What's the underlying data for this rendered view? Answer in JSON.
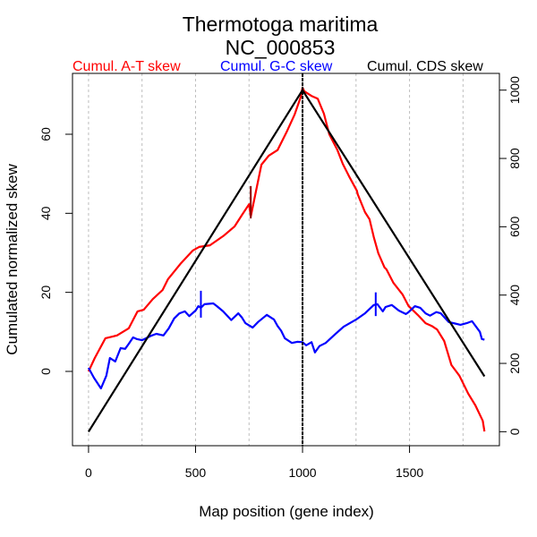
{
  "chart_data": {
    "type": "line",
    "title": "Thermotoga maritima",
    "subtitle": "NC_000853",
    "xlabel": "Map position (gene index)",
    "ylabel": "Cumulated normalized skew",
    "xlim": [
      -75,
      1920
    ],
    "ylim": [
      -18.8,
      75.4
    ],
    "y2lim": [
      -41,
      1049
    ],
    "xticks": [
      0,
      500,
      1000,
      1500
    ],
    "yticks": [
      0,
      20,
      40,
      60
    ],
    "y2ticks": [
      0,
      200,
      400,
      600,
      800,
      1000
    ],
    "grid_x": [
      0,
      250,
      500,
      750,
      1000,
      1250,
      1500,
      1750
    ],
    "legend_placement": "top",
    "legend": [
      {
        "label": "Cumul. A-T skew",
        "color": "#ff0000"
      },
      {
        "label": "Cumul. G-C skew",
        "color": "#0000ff"
      },
      {
        "label": "Cumul. CDS skew",
        "color": "#000000"
      }
    ],
    "origin_marker_x": 1000,
    "series": [
      {
        "name": "Cumul. A-T skew",
        "color": "#ff0000",
        "axis": "left",
        "x": [
          0,
          8,
          29,
          79,
          133,
          188,
          229,
          258,
          300,
          346,
          371,
          429,
          488,
          517,
          567,
          633,
          683,
          717,
          750,
          758,
          808,
          842,
          883,
          925,
          963,
          992,
          1000,
          1008,
          1042,
          1071,
          1100,
          1125,
          1162,
          1188,
          1217,
          1254,
          1258,
          1292,
          1313,
          1333,
          1354,
          1383,
          1392,
          1425,
          1467,
          1496,
          1538,
          1575,
          1604,
          1629,
          1662,
          1696,
          1733,
          1775,
          1808,
          1842,
          1850
        ],
        "y": [
          0,
          0.9,
          3.4,
          8.4,
          9.1,
          10.9,
          15.2,
          15.6,
          18.3,
          20.6,
          23.3,
          27.2,
          30.6,
          31.5,
          31.9,
          34.4,
          36.7,
          39.6,
          42.3,
          39.2,
          52.3,
          54.6,
          56.0,
          60.5,
          65.0,
          69.5,
          71.8,
          70.9,
          69.7,
          69.0,
          65.2,
          60.0,
          56.1,
          52.5,
          49.4,
          45.7,
          44.8,
          40.3,
          38.5,
          34.0,
          29.9,
          26.3,
          25.8,
          22.4,
          19.5,
          16.5,
          14.3,
          12.2,
          11.5,
          10.6,
          7.7,
          1.6,
          -1.1,
          -5.7,
          -8.6,
          -12.5,
          -15.2
        ]
      },
      {
        "name": "Cumul. G-C skew",
        "color": "#0000ff",
        "axis": "left",
        "x": [
          0,
          25,
          58,
          83,
          100,
          125,
          150,
          171,
          188,
          208,
          225,
          250,
          292,
          317,
          350,
          375,
          400,
          425,
          450,
          471,
          500,
          513,
          525,
          542,
          583,
          600,
          629,
          667,
          700,
          717,
          733,
          767,
          792,
          833,
          867,
          883,
          900,
          917,
          950,
          975,
          1000,
          1017,
          1042,
          1058,
          1079,
          1108,
          1150,
          1192,
          1250,
          1292,
          1333,
          1350,
          1375,
          1388,
          1417,
          1450,
          1483,
          1496,
          1525,
          1550,
          1575,
          1596,
          1625,
          1646,
          1683,
          1713,
          1738,
          1767,
          1792,
          1829,
          1838,
          1850
        ],
        "y": [
          0.9,
          -1.6,
          -4.3,
          -1.1,
          3.4,
          2.5,
          5.9,
          5.7,
          7.0,
          8.6,
          8.2,
          7.9,
          9.0,
          9.5,
          9.1,
          10.9,
          13.4,
          14.7,
          15.2,
          14.0,
          15.4,
          16.5,
          16.1,
          17.0,
          17.2,
          16.5,
          15.2,
          13.0,
          14.7,
          13.6,
          12.2,
          11.1,
          12.5,
          14.3,
          13.1,
          11.5,
          10.3,
          8.4,
          7.2,
          7.5,
          7.4,
          6.6,
          7.4,
          4.8,
          6.4,
          7.2,
          9.3,
          11.3,
          13.1,
          14.7,
          16.8,
          17.0,
          15.2,
          16.3,
          16.8,
          15.4,
          14.5,
          15.0,
          16.5,
          16.1,
          14.7,
          14.1,
          15.0,
          14.7,
          12.5,
          12.1,
          11.8,
          12.2,
          12.7,
          10.0,
          8.2,
          8.0
        ]
      },
      {
        "name": "Cumul. CDS skew",
        "color": "#000000",
        "axis": "right",
        "x": [
          0,
          1000,
          1850
        ],
        "y": [
          0,
          1000,
          162
        ]
      }
    ],
    "markers": [
      {
        "series": "Cumul. A-T skew",
        "x": 758,
        "y_range": [
          38.7,
          46.9
        ],
        "color": "#8b0000"
      },
      {
        "series": "Cumul. G-C skew",
        "x": 525,
        "y_range": [
          13.6,
          20.4
        ],
        "color": "#0000ff"
      },
      {
        "series": "Cumul. G-C skew",
        "x": 1342,
        "y_range": [
          14.0,
          20.0
        ],
        "color": "#0000ff"
      }
    ]
  }
}
